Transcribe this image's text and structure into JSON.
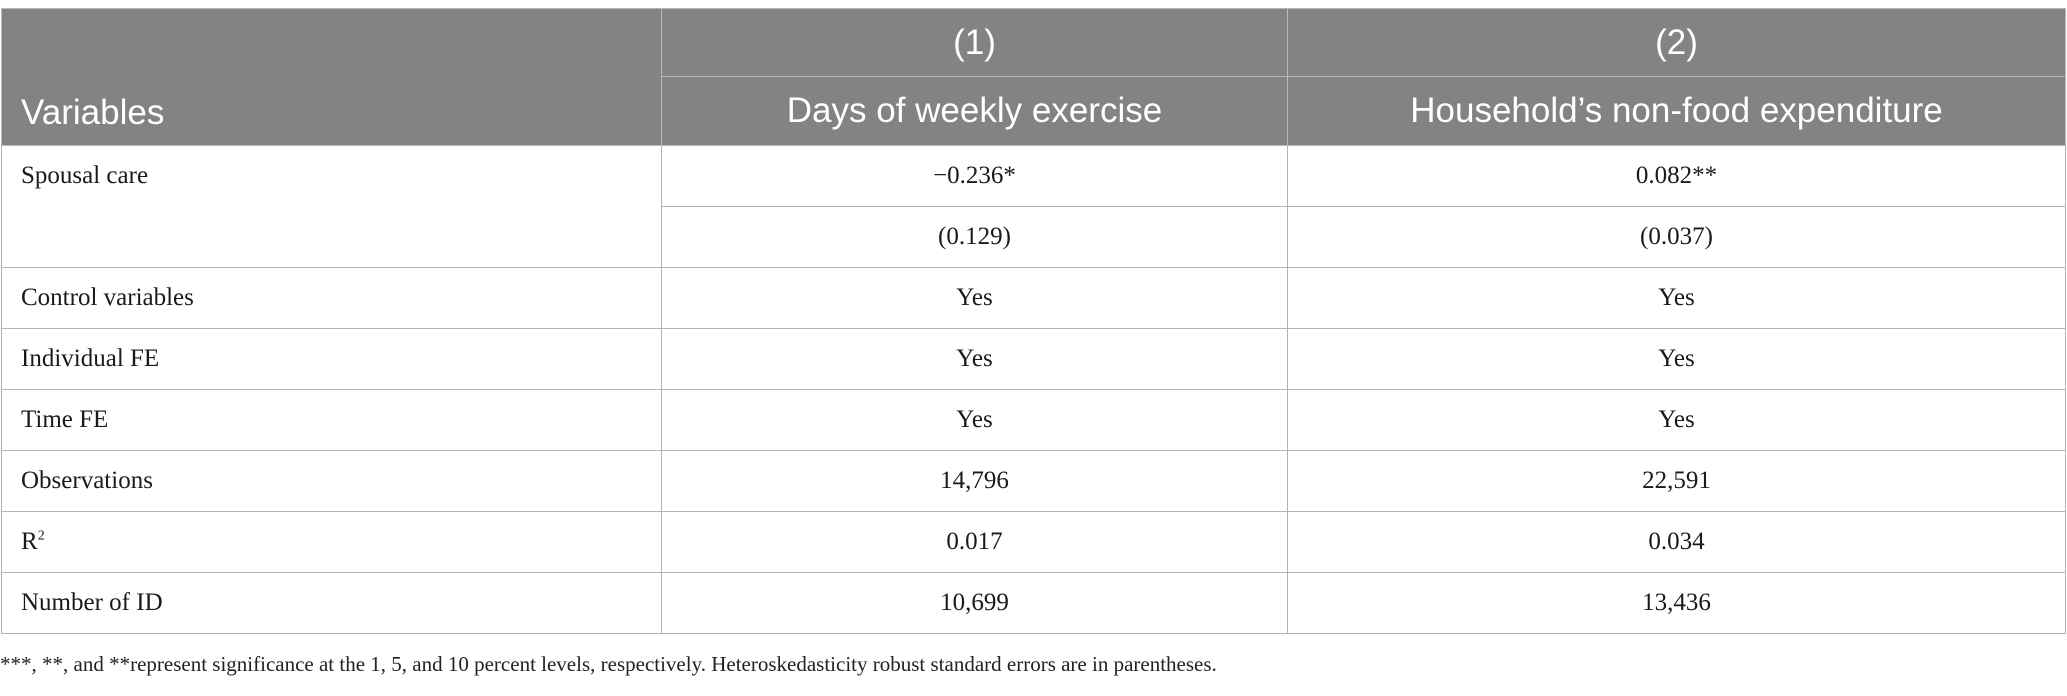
{
  "header": {
    "variables_label": "Variables",
    "col1_number": "(1)",
    "col2_number": "(2)",
    "col1_title": "Days of weekly exercise",
    "col2_title": "Household’s non-food expenditure"
  },
  "rows": {
    "spousal_care": {
      "label": "Spousal care",
      "coef1": "−0.236*",
      "coef2": "0.082**",
      "se1": "(0.129)",
      "se2": "(0.037)"
    },
    "control_variables": {
      "label": "Control variables",
      "v1": "Yes",
      "v2": "Yes"
    },
    "individual_fe": {
      "label": "Individual FE",
      "v1": "Yes",
      "v2": "Yes"
    },
    "time_fe": {
      "label": "Time FE",
      "v1": "Yes",
      "v2": "Yes"
    },
    "observations": {
      "label": "Observations",
      "v1": "14,796",
      "v2": "22,591"
    },
    "r_squared": {
      "label_base": "R",
      "label_sup": "2",
      "v1": "0.017",
      "v2": "0.034"
    },
    "number_of_id": {
      "label": "Number of ID",
      "v1": "10,699",
      "v2": "13,436"
    }
  },
  "footnote": "***, **, and **represent significance at the 1, 5, and 10 percent levels, respectively. Heteroskedasticity robust standard errors are in parentheses."
}
